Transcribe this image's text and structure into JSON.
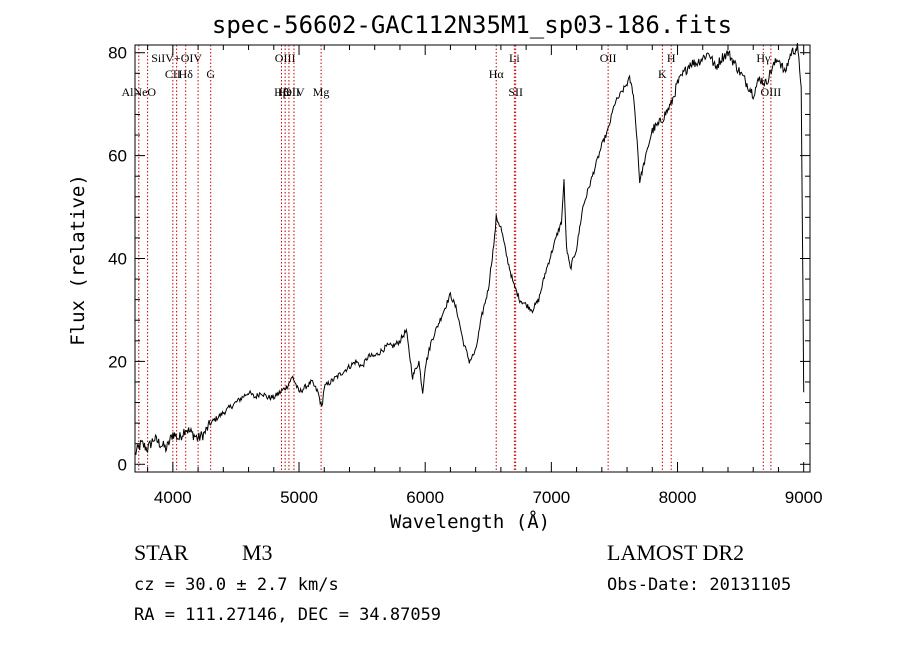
{
  "chart_data": {
    "type": "line",
    "title": "spec-56602-GAC112N35M1_sp03-186.fits",
    "xlabel": "Wavelength (Å)",
    "ylabel": "Flux (relative)",
    "xlim": [
      3700,
      9050
    ],
    "ylim": [
      -1.5,
      81.5
    ],
    "xticks": [
      4000,
      5000,
      6000,
      7000,
      8000,
      9000
    ],
    "yticks": [
      0,
      20,
      40,
      60,
      80
    ],
    "series": [
      {
        "name": "flux",
        "x": [
          3700,
          3750,
          3800,
          3850,
          3900,
          3950,
          4000,
          4050,
          4100,
          4150,
          4200,
          4250,
          4300,
          4350,
          4400,
          4450,
          4500,
          4550,
          4600,
          4650,
          4700,
          4750,
          4800,
          4850,
          4900,
          4950,
          5000,
          5050,
          5100,
          5150,
          5180,
          5200,
          5250,
          5300,
          5350,
          5400,
          5450,
          5500,
          5550,
          5600,
          5650,
          5700,
          5750,
          5800,
          5850,
          5900,
          5950,
          5980,
          6000,
          6050,
          6100,
          6150,
          6200,
          6250,
          6300,
          6350,
          6400,
          6450,
          6500,
          6550,
          6563,
          6600,
          6650,
          6700,
          6750,
          6800,
          6850,
          6900,
          6950,
          7000,
          7050,
          7080,
          7100,
          7120,
          7150,
          7200,
          7250,
          7300,
          7350,
          7400,
          7450,
          7500,
          7550,
          7600,
          7620,
          7650,
          7680,
          7700,
          7750,
          7800,
          7850,
          7900,
          7950,
          8000,
          8050,
          8100,
          8150,
          8200,
          8250,
          8300,
          8350,
          8400,
          8450,
          8500,
          8550,
          8600,
          8650,
          8700,
          8750,
          8800,
          8850,
          8900,
          8950,
          8980,
          9000
        ],
        "values": [
          2,
          4,
          3,
          5,
          4,
          3,
          6,
          5,
          7,
          6,
          5,
          6,
          8,
          9,
          10,
          11,
          12,
          13,
          14,
          13,
          14,
          13,
          13,
          14,
          15,
          17,
          14,
          15,
          16,
          14,
          11,
          15,
          16,
          17,
          18,
          19,
          20,
          19,
          21,
          21,
          22,
          23,
          23,
          24,
          26,
          17,
          20,
          14,
          19,
          24,
          27,
          30,
          33,
          30,
          24,
          20,
          22,
          29,
          34,
          44,
          48,
          46,
          40,
          35,
          32,
          31,
          30,
          32,
          37,
          41,
          45,
          47,
          55,
          42,
          38,
          42,
          50,
          54,
          58,
          62,
          65,
          70,
          72,
          74,
          75,
          72,
          63,
          55,
          60,
          65,
          66,
          68,
          70,
          74,
          76,
          78,
          78,
          79,
          80,
          77,
          79,
          80,
          78,
          76,
          74,
          72,
          75,
          74,
          77,
          79,
          76,
          80,
          81,
          74,
          14
        ]
      }
    ],
    "line_markers": [
      {
        "label": "AlNeO",
        "wl": 3730,
        "row": "low"
      },
      {
        "label": "",
        "wl": 3800,
        "row": "none"
      },
      {
        "label": "CII",
        "wl": 4000,
        "row": "mid"
      },
      {
        "label": "SiIV+OIV",
        "wl": 4030,
        "row": "top"
      },
      {
        "label": "Hδ",
        "wl": 4102,
        "row": "mid"
      },
      {
        "label": "",
        "wl": 4200,
        "row": "none"
      },
      {
        "label": "G",
        "wl": 4300,
        "row": "mid"
      },
      {
        "label": "Hβ",
        "wl": 4861,
        "row": "low"
      },
      {
        "label": "OIII",
        "wl": 4890,
        "row": "top"
      },
      {
        "label": "HeII",
        "wl": 4920,
        "row": "low"
      },
      {
        "label": "OIV",
        "wl": 4960,
        "row": "low"
      },
      {
        "label": "Mg",
        "wl": 5175,
        "row": "low"
      },
      {
        "label": "Hα",
        "wl": 6563,
        "row": "mid"
      },
      {
        "label": "Li",
        "wl": 6707,
        "row": "top"
      },
      {
        "label": "SII",
        "wl": 6717,
        "row": "low"
      },
      {
        "label": "OII",
        "wl": 7450,
        "row": "top"
      },
      {
        "label": "K",
        "wl": 7880,
        "row": "mid"
      },
      {
        "label": "H",
        "wl": 7950,
        "row": "top"
      },
      {
        "label": "Hγ",
        "wl": 8680,
        "row": "top"
      },
      {
        "label": "OIII",
        "wl": 8740,
        "row": "low"
      }
    ]
  },
  "object_class": "STAR",
  "subclass": "M3",
  "survey": "LAMOST DR2",
  "redshift_text": "cz = 30.0 ± 2.7 km/s",
  "obs_date_text": "Obs-Date: 20131105",
  "coords_text": "RA = 111.27146, DEC =  34.87059",
  "colors": {
    "spectrum": "#000000",
    "marker_line": "#cc0000",
    "axis": "#000000"
  }
}
